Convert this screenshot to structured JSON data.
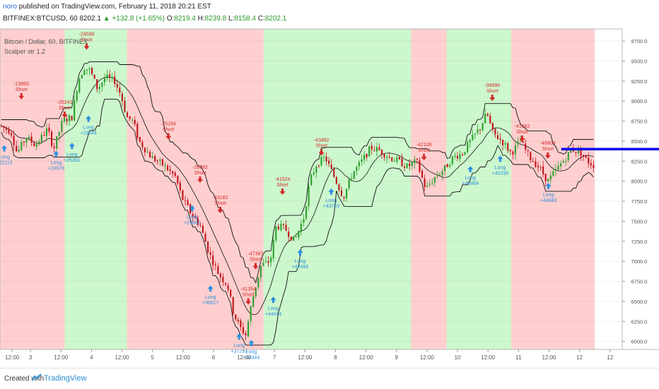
{
  "header": {
    "author": "noro",
    "published_text": "published on TradingView.com, February 11, 2018 20:21 EST",
    "symbol": "BITFINEX:BTCUSD, 60",
    "last": "8202.1",
    "change": "+132.8 (+1.65%)",
    "o_label": "O:",
    "o_value": "8219.4",
    "h_label": "H:",
    "h_value": "8239.8",
    "l_label": "L:",
    "l_value": "8158.4",
    "c_label": "C:",
    "c_value": "8202.1"
  },
  "legend": {
    "pair": "Bitcoin / Dollar, 60, BITFINEX",
    "indicator": "Scalper str 1.2"
  },
  "footer": {
    "created_with": "Created with",
    "brand": "TradingView"
  },
  "colors": {
    "bull": "#2ca02c",
    "bear": "#c0141a",
    "bg_red": "#ffcfcf",
    "bg_green": "#cdf7cd",
    "signal_long": "#2a8fe0",
    "signal_short": "#d42a2a",
    "price_line": "#0000ee"
  },
  "chart_data": {
    "type": "candlestick",
    "ylim": [
      5900,
      9900
    ],
    "price_line": 8400,
    "y_ticks": [
      "9750.0",
      "9500.0",
      "9250.0",
      "9000.0",
      "8750.0",
      "8500.0",
      "8250.0",
      "8000.0",
      "7750.0",
      "7500.0",
      "7250.0",
      "7000.0",
      "6750.0",
      "6500.0",
      "6250.0",
      "6000.0"
    ],
    "y_tick_values": [
      9750,
      9500,
      9250,
      9000,
      8750,
      8500,
      8250,
      8000,
      7750,
      7500,
      7250,
      7000,
      6750,
      6500,
      6250,
      6000
    ],
    "x_ticks": [
      {
        "label": "12:00",
        "t": 0.2
      },
      {
        "label": "3",
        "t": 0.5
      },
      {
        "label": "12:00",
        "t": 1.0
      },
      {
        "label": "4",
        "t": 1.5
      },
      {
        "label": "12:00",
        "t": 2.0
      },
      {
        "label": "5",
        "t": 2.5
      },
      {
        "label": "12:00",
        "t": 3.0
      },
      {
        "label": "6",
        "t": 3.5
      },
      {
        "label": "12:00",
        "t": 4.0
      },
      {
        "label": "7",
        "t": 4.5
      },
      {
        "label": "12:00",
        "t": 5.0
      },
      {
        "label": "8",
        "t": 5.5
      },
      {
        "label": "12:00",
        "t": 6.0
      },
      {
        "label": "9",
        "t": 6.5
      },
      {
        "label": "12:00",
        "t": 7.0
      },
      {
        "label": "10",
        "t": 7.5
      },
      {
        "label": "12:00",
        "t": 8.0
      },
      {
        "label": "11",
        "t": 8.5
      },
      {
        "label": "12:00",
        "t": 9.0
      },
      {
        "label": "12",
        "t": 9.5
      },
      {
        "label": "12",
        "t": 10.0
      }
    ],
    "regions": [
      {
        "from": 0.0,
        "to": 1.06,
        "trend": "short"
      },
      {
        "from": 1.06,
        "to": 2.08,
        "trend": "long"
      },
      {
        "from": 2.08,
        "to": 4.32,
        "trend": "short"
      },
      {
        "from": 4.32,
        "to": 6.74,
        "trend": "long"
      },
      {
        "from": 6.74,
        "to": 7.32,
        "trend": "short"
      },
      {
        "from": 7.32,
        "to": 8.38,
        "trend": "long"
      },
      {
        "from": 8.38,
        "to": 9.75,
        "trend": "short"
      }
    ],
    "path": [
      [
        0,
        8700
      ],
      [
        0.2,
        8620
      ],
      [
        0.3,
        8350
      ],
      [
        0.45,
        8550
      ],
      [
        0.6,
        8450
      ],
      [
        0.8,
        8650
      ],
      [
        0.9,
        8400
      ],
      [
        1.05,
        8760
      ],
      [
        1.2,
        8800
      ],
      [
        1.3,
        9250
      ],
      [
        1.4,
        9420
      ],
      [
        1.5,
        9380
      ],
      [
        1.62,
        9150
      ],
      [
        1.75,
        9300
      ],
      [
        1.9,
        9250
      ],
      [
        2.0,
        9080
      ],
      [
        2.1,
        8800
      ],
      [
        2.2,
        8750
      ],
      [
        2.3,
        8500
      ],
      [
        2.5,
        8300
      ],
      [
        2.7,
        8200
      ],
      [
        2.9,
        8050
      ],
      [
        3.0,
        7800
      ],
      [
        3.15,
        7600
      ],
      [
        3.3,
        7450
      ],
      [
        3.45,
        7100
      ],
      [
        3.6,
        6850
      ],
      [
        3.75,
        6700
      ],
      [
        3.85,
        6350
      ],
      [
        3.95,
        6180
      ],
      [
        4.05,
        6080
      ],
      [
        4.15,
        6500
      ],
      [
        4.3,
        6950
      ],
      [
        4.45,
        7000
      ],
      [
        4.55,
        7450
      ],
      [
        4.7,
        7400
      ],
      [
        4.85,
        7250
      ],
      [
        5.0,
        7550
      ],
      [
        5.1,
        8000
      ],
      [
        5.2,
        8200
      ],
      [
        5.35,
        8300
      ],
      [
        5.5,
        8050
      ],
      [
        5.65,
        7800
      ],
      [
        5.8,
        8100
      ],
      [
        5.95,
        8250
      ],
      [
        6.1,
        8420
      ],
      [
        6.25,
        8380
      ],
      [
        6.4,
        8300
      ],
      [
        6.55,
        8250
      ],
      [
        6.7,
        8180
      ],
      [
        6.85,
        8250
      ],
      [
        7.0,
        7900
      ],
      [
        7.15,
        8050
      ],
      [
        7.3,
        8150
      ],
      [
        7.45,
        8300
      ],
      [
        7.6,
        8350
      ],
      [
        7.75,
        8520
      ],
      [
        7.9,
        8680
      ],
      [
        8.0,
        8850
      ],
      [
        8.1,
        8600
      ],
      [
        8.25,
        8500
      ],
      [
        8.4,
        8350
      ],
      [
        8.55,
        8500
      ],
      [
        8.7,
        8300
      ],
      [
        8.85,
        8180
      ],
      [
        9.0,
        8000
      ],
      [
        9.1,
        8100
      ],
      [
        9.25,
        8250
      ],
      [
        9.4,
        8400
      ],
      [
        9.55,
        8350
      ],
      [
        9.65,
        8250
      ],
      [
        9.75,
        8200
      ]
    ],
    "signals": [
      {
        "t": 0.07,
        "price": 8450,
        "side": "long",
        "label": "Long",
        "value": "+22113"
      },
      {
        "t": 0.35,
        "price": 9020,
        "side": "short",
        "label": "Short",
        "value": "-23960"
      },
      {
        "t": 0.92,
        "price": 8380,
        "side": "long",
        "label": "Long",
        "value": "+24976"
      },
      {
        "t": 1.06,
        "price": 8790,
        "side": "short",
        "label": "Short",
        "value": "-25241"
      },
      {
        "t": 1.18,
        "price": 8480,
        "side": "long",
        "label": "Long",
        "value": "+25361"
      },
      {
        "t": 1.42,
        "price": 9640,
        "side": "short",
        "label": "Short",
        "value": "-24598"
      },
      {
        "t": 1.45,
        "price": 8820,
        "side": "long",
        "label": "Long",
        "value": "+24844"
      },
      {
        "t": 2.76,
        "price": 8520,
        "side": "short",
        "label": "Short",
        "value": "-25284"
      },
      {
        "t": 3.28,
        "price": 7980,
        "side": "short",
        "label": "Short",
        "value": "-28082"
      },
      {
        "t": 3.15,
        "price": 7700,
        "side": "long",
        "label": "Long",
        "value": "+28682"
      },
      {
        "t": 3.61,
        "price": 7600,
        "side": "short",
        "label": "Short",
        "value": "-33182"
      },
      {
        "t": 3.45,
        "price": 6700,
        "side": "long",
        "label": "Long",
        "value": "+30617"
      },
      {
        "t": 4.19,
        "price": 6900,
        "side": "short",
        "label": "Short",
        "value": "-47387"
      },
      {
        "t": 4.07,
        "price": 6460,
        "side": "short",
        "label": "Short",
        "value": "-41354"
      },
      {
        "t": 3.92,
        "price": 6100,
        "side": "long",
        "label": "Long",
        "value": "+37253"
      },
      {
        "t": 4.12,
        "price": 6020,
        "side": "long",
        "label": "Long",
        "value": "+44444"
      },
      {
        "t": 4.48,
        "price": 6560,
        "side": "long",
        "label": "Long",
        "value": "+44414"
      },
      {
        "t": 4.63,
        "price": 7830,
        "side": "short",
        "label": "Short",
        "value": "-41524"
      },
      {
        "t": 4.92,
        "price": 7150,
        "side": "long",
        "label": "Long",
        "value": "+42466"
      },
      {
        "t": 5.27,
        "price": 8320,
        "side": "short",
        "label": "Short",
        "value": "-43462"
      },
      {
        "t": 5.43,
        "price": 7910,
        "side": "long",
        "label": "Long",
        "value": "+43703"
      },
      {
        "t": 6.95,
        "price": 8260,
        "side": "short",
        "label": "Short",
        "value": "-42106"
      },
      {
        "t": 7.71,
        "price": 8190,
        "side": "long",
        "label": "Long",
        "value": "+40864"
      },
      {
        "t": 8.07,
        "price": 9000,
        "side": "short",
        "label": "Short",
        "value": "-38690"
      },
      {
        "t": 8.2,
        "price": 8320,
        "side": "long",
        "label": "Long",
        "value": "+40336"
      },
      {
        "t": 8.56,
        "price": 8490,
        "side": "short",
        "label": "Short",
        "value": "-41662"
      },
      {
        "t": 8.98,
        "price": 8280,
        "side": "short",
        "label": "Short",
        "value": "-46804"
      },
      {
        "t": 8.99,
        "price": 7980,
        "side": "long",
        "label": "Long",
        "value": "+44383"
      }
    ]
  }
}
